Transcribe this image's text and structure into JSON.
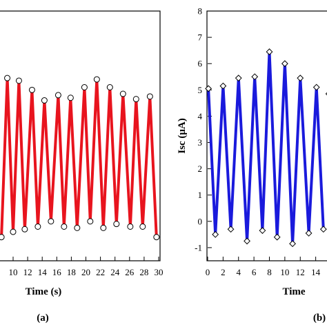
{
  "chart_data": [
    {
      "panel_label": "(a)",
      "type": "line",
      "xlabel": "Time (s)",
      "ylabel": "",
      "x_ticks": [
        "10",
        "12",
        "14",
        "16",
        "18",
        "20",
        "22",
        "24",
        "26",
        "28",
        "30"
      ],
      "xlim": [
        8.2,
        30
      ],
      "color": "#e8141e",
      "marker": "circle",
      "x": [
        8.4,
        9.2,
        10.0,
        10.8,
        11.6,
        12.6,
        13.4,
        14.3,
        15.2,
        16.2,
        17.0,
        17.9,
        18.8,
        19.8,
        20.6,
        21.5,
        22.4,
        23.3,
        24.2,
        25.1,
        26.1,
        26.9,
        27.8,
        28.8,
        29.7
      ],
      "y": [
        -0.6,
        5.45,
        -0.4,
        5.35,
        -0.3,
        5.0,
        -0.2,
        4.6,
        0.0,
        4.8,
        -0.2,
        4.7,
        -0.25,
        5.1,
        0.0,
        5.4,
        -0.25,
        5.1,
        -0.1,
        4.85,
        -0.2,
        4.65,
        -0.2,
        4.75,
        -0.6
      ],
      "ylim": [
        -1.5,
        8
      ]
    },
    {
      "panel_label": "(b)",
      "type": "line",
      "xlabel": "Time",
      "ylabel": "Isc (μA)",
      "y_ticks": [
        "-1",
        "0",
        "1",
        "2",
        "3",
        "4",
        "5",
        "6",
        "7",
        "8"
      ],
      "x_ticks": [
        "0",
        "2",
        "4",
        "6",
        "8",
        "10",
        "12",
        "14"
      ],
      "ylim": [
        -1.5,
        8
      ],
      "xlim": [
        0,
        16
      ],
      "color": "#1a1adc",
      "marker": "diamond",
      "x": [
        0.1,
        1.0,
        2.0,
        3.0,
        4.0,
        5.1,
        6.1,
        7.1,
        8.0,
        9.0,
        10.0,
        11.0,
        12.0,
        13.1,
        14.1,
        15.0
      ],
      "y": [
        5.05,
        -0.5,
        5.15,
        -0.3,
        5.45,
        -0.75,
        5.5,
        -0.35,
        6.45,
        -0.6,
        6.0,
        -0.85,
        5.45,
        -0.45,
        5.1,
        -0.3
      ],
      "extra_points": [
        {
          "x": 15.7,
          "y": 4.85
        }
      ]
    }
  ]
}
